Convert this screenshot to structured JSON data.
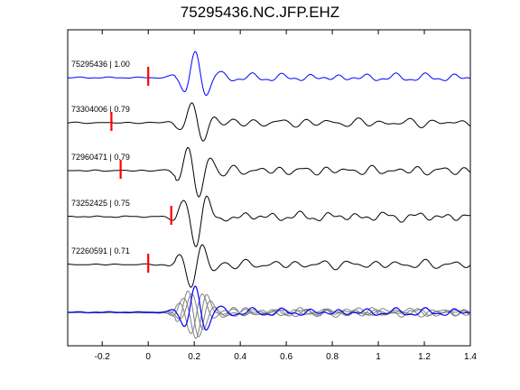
{
  "title": "75295436.NC.JFP.EHZ",
  "colors": {
    "template": "#0000ff",
    "match": "#000000",
    "pick": "#ff0000",
    "stack_match": "#808080"
  },
  "chart_data": {
    "type": "line",
    "title": "75295436.NC.JFP.EHZ",
    "xlabel": "",
    "ylabel": "",
    "xlim": [
      -0.35,
      1.4
    ],
    "x_ticks": [
      -0.2,
      0,
      0.2,
      0.4,
      0.6,
      0.8,
      1,
      1.2,
      1.4
    ],
    "x_tick_labels": [
      "-0.2",
      "0",
      "0.2",
      "0.4",
      "0.6",
      "0.8",
      "1",
      "1.2",
      "1.4"
    ],
    "grid": false,
    "traces": [
      {
        "label": "75295436 | 1.00",
        "id": "75295436",
        "cc": 1.0,
        "pick_time": 0.0,
        "color": "template"
      },
      {
        "label": "73304006 | 0.79",
        "id": "73304006",
        "cc": 0.79,
        "pick_time": -0.16,
        "color": "match"
      },
      {
        "label": "72960471 | 0.79",
        "id": "72960471",
        "cc": 0.79,
        "pick_time": -0.12,
        "color": "match"
      },
      {
        "label": "73252425 | 0.75",
        "id": "73252425",
        "cc": 0.75,
        "pick_time": 0.1,
        "color": "match"
      },
      {
        "label": "72260591 | 0.71",
        "id": "72260591",
        "cc": 0.71,
        "pick_time": 0.0,
        "color": "match"
      }
    ]
  }
}
